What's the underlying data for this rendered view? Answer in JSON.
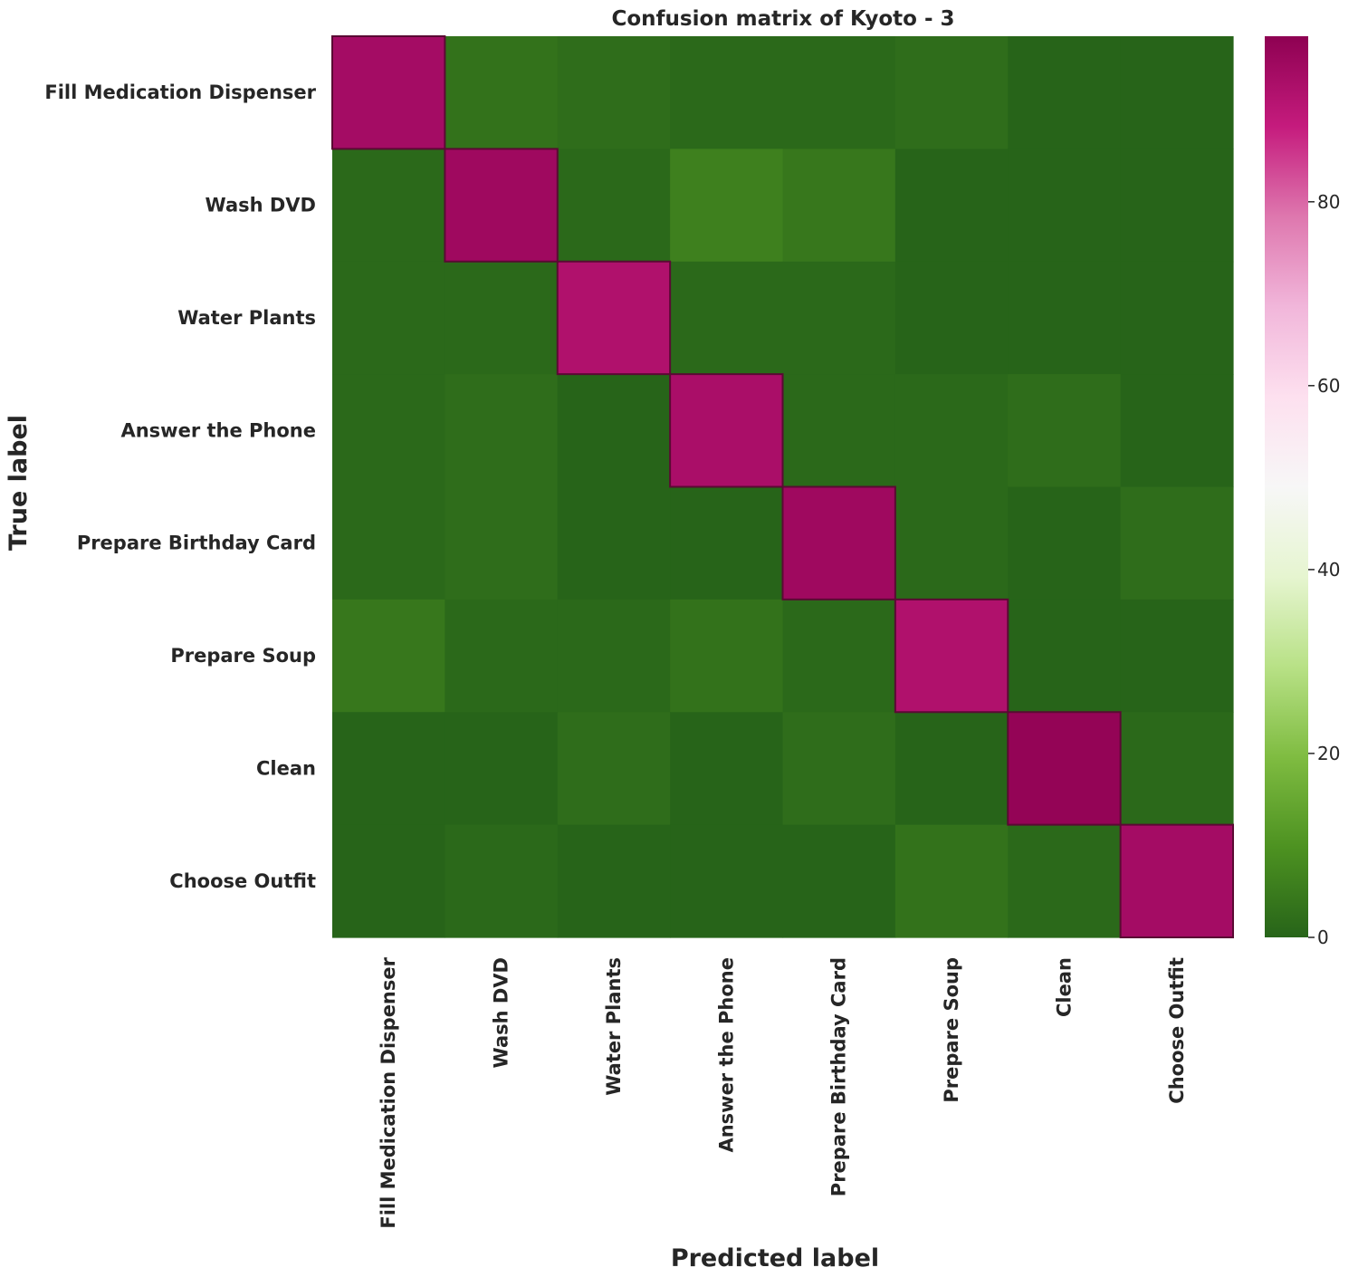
{
  "chart_data": {
    "type": "heatmap",
    "title": "Confusion matrix of Kyoto - 3",
    "xlabel": "Predicted label",
    "ylabel": "True label",
    "x_categories": [
      "Fill Medication Dispenser",
      "Wash DVD",
      "Water Plants",
      "Answer the Phone",
      "Prepare Birthday Card",
      "Prepare Soup",
      "Clean",
      "Choose Outfit"
    ],
    "y_categories": [
      "Fill Medication Dispenser",
      "Wash DVD",
      "Water Plants",
      "Answer the Phone",
      "Prepare Birthday Card",
      "Prepare Soup",
      "Clean",
      "Choose Outfit"
    ],
    "values": [
      [
        94,
        3,
        2,
        1,
        1,
        2,
        0,
        0
      ],
      [
        1,
        95,
        1,
        6,
        4,
        0,
        0,
        0
      ],
      [
        1,
        1,
        92,
        1,
        1,
        0,
        0,
        0
      ],
      [
        1,
        2,
        0,
        93,
        1,
        1,
        2,
        0
      ],
      [
        1,
        2,
        0,
        0,
        95,
        1,
        0,
        2
      ],
      [
        4,
        1,
        1,
        3,
        1,
        92,
        0,
        0
      ],
      [
        0,
        0,
        2,
        0,
        2,
        0,
        97,
        1
      ],
      [
        0,
        1,
        0,
        0,
        0,
        3,
        1,
        94
      ]
    ],
    "colorbar": {
      "min": 0,
      "max": 98,
      "ticks": [
        0,
        20,
        40,
        60,
        80
      ],
      "colormap": "PiYG"
    },
    "annotations": false
  }
}
